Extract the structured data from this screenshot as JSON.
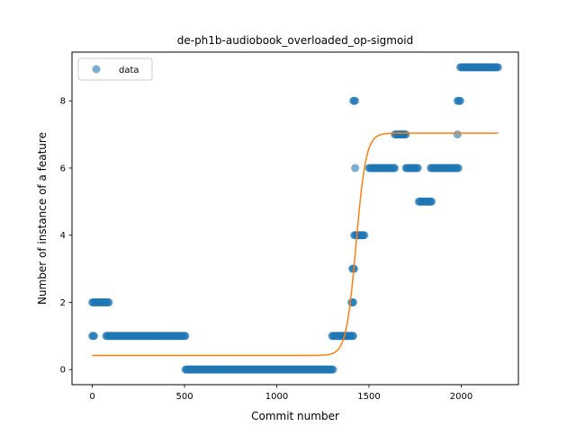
{
  "chart_data": {
    "type": "scatter",
    "title": "de-ph1b-audiobook_overloaded_op-sigmoid",
    "xlabel": "Commit number",
    "ylabel": "Number of instance of a feature",
    "xlim": [
      -110,
      2310
    ],
    "ylim": [
      -0.45,
      9.45
    ],
    "xticks": [
      0,
      500,
      1000,
      1500,
      2000
    ],
    "yticks": [
      0,
      2,
      4,
      6,
      8
    ],
    "grid": false,
    "legend": {
      "placement": "top-left",
      "entries": [
        "data"
      ]
    },
    "colors": {
      "data": "#1f77b4",
      "fit": "#ff7f0e"
    },
    "series": [
      {
        "name": "data",
        "kind": "scatter",
        "segments": [
          {
            "x_start": 0,
            "x_end": 10,
            "y": 1
          },
          {
            "x_start": 0,
            "x_end": 90,
            "y": 2
          },
          {
            "x_start": 75,
            "x_end": 505,
            "y": 1
          },
          {
            "x_start": 505,
            "x_end": 1305,
            "y": 0
          },
          {
            "x_start": 1300,
            "x_end": 1415,
            "y": 1
          },
          {
            "x_start": 1405,
            "x_end": 1415,
            "y": 2
          },
          {
            "x_start": 1410,
            "x_end": 1420,
            "y": 3
          },
          {
            "x_start": 1420,
            "x_end": 1475,
            "y": 4
          },
          {
            "x_start": 1415,
            "x_end": 1425,
            "y": 8
          },
          {
            "x_start": 1425,
            "x_end": 1425,
            "y": 6
          },
          {
            "x_start": 1500,
            "x_end": 1640,
            "y": 6
          },
          {
            "x_start": 1640,
            "x_end": 1700,
            "y": 7
          },
          {
            "x_start": 1700,
            "x_end": 1765,
            "y": 6
          },
          {
            "x_start": 1770,
            "x_end": 1840,
            "y": 5
          },
          {
            "x_start": 1835,
            "x_end": 1985,
            "y": 6
          },
          {
            "x_start": 1980,
            "x_end": 1980,
            "y": 7
          },
          {
            "x_start": 1980,
            "x_end": 1995,
            "y": 8
          },
          {
            "x_start": 1995,
            "x_end": 2200,
            "y": 9
          }
        ]
      },
      {
        "kind": "line",
        "function": "sigmoid",
        "params": {
          "base": 0.42,
          "amplitude": 6.62,
          "center": 1430,
          "scale": 27
        },
        "x_range": [
          0,
          2200
        ]
      }
    ]
  }
}
